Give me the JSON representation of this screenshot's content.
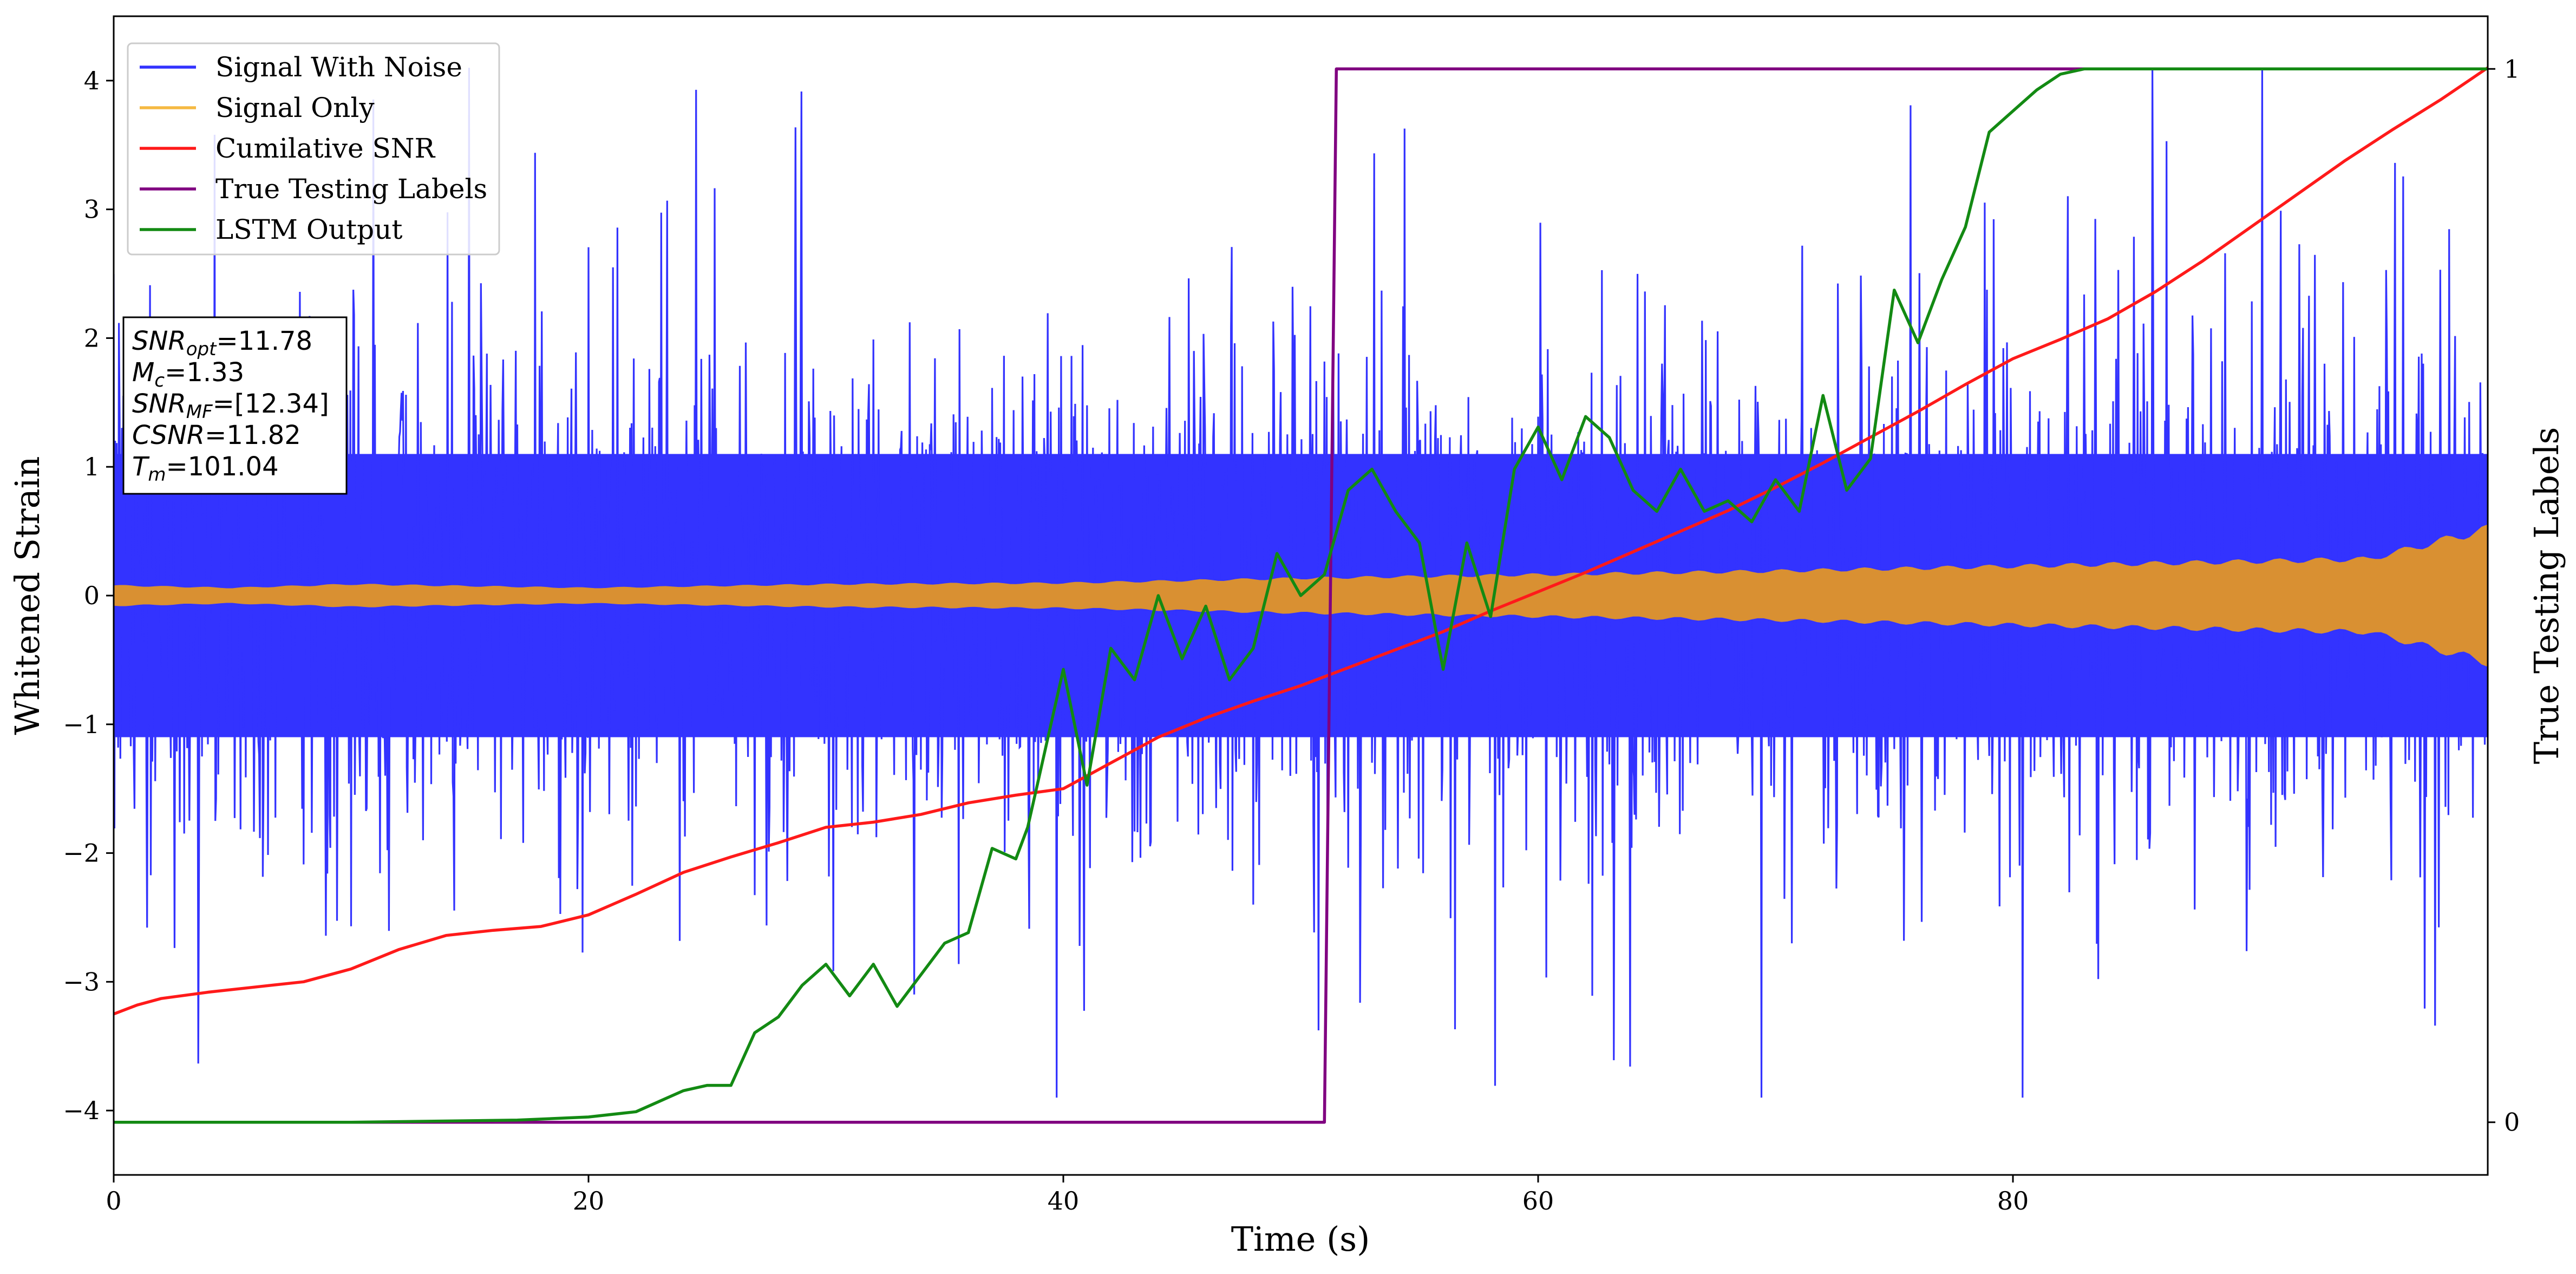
{
  "chart_data": {
    "type": "line",
    "title": "",
    "xlabel": "Time (s)",
    "ylabel": "Whitened Strain",
    "y2label": "True Testing Labels",
    "xlim": [
      0,
      100
    ],
    "ylim": [
      -4.5,
      4.5
    ],
    "y2lim": [
      -0.05,
      1.05
    ],
    "xticks": [
      0,
      20,
      40,
      60,
      80
    ],
    "xtick_labels": [
      "0",
      "20",
      "40",
      "60",
      "80"
    ],
    "yticks": [
      -4,
      -3,
      -2,
      -1,
      0,
      1,
      2,
      3,
      4
    ],
    "ytick_labels": [
      "−4",
      "−3",
      "−2",
      "−1",
      "0",
      "1",
      "2",
      "3",
      "4"
    ],
    "y2ticks": [
      0,
      1
    ],
    "y2tick_labels": [
      "0",
      "1"
    ],
    "grid": false,
    "legend_position": "top-left",
    "legend": [
      {
        "label": "Signal With Noise",
        "color": "#3333ff"
      },
      {
        "label": "Signal Only",
        "color": "#f5b942"
      },
      {
        "label": "Cumilative SNR",
        "color": "#ff1a1a"
      },
      {
        "label": "True Testing Labels",
        "color": "#800080"
      },
      {
        "label": "LSTM Output",
        "color": "#138a13"
      }
    ],
    "annotation": [
      {
        "base": "SNR",
        "sub": "opt",
        "value": "=11.78"
      },
      {
        "base": "M",
        "sub": "c",
        "value": "=1.33"
      },
      {
        "base": "SNR",
        "sub": "MF",
        "value": "=[12.34]"
      },
      {
        "base": "CSNR",
        "sub": "",
        "value": "=11.82"
      },
      {
        "base": "T",
        "sub": "m",
        "value": "=101.04"
      }
    ],
    "series": [
      {
        "name": "Signal With Noise",
        "axis": "left",
        "style": "dense-noise",
        "description_range": [
          -3.9,
          4.1
        ],
        "band_range": [
          -1.1,
          1.1
        ],
        "color": "#3333ff"
      },
      {
        "name": "Signal Only",
        "axis": "left",
        "style": "envelope",
        "color": "#d99032",
        "x": [
          0,
          5,
          10,
          20,
          30,
          40,
          50,
          60,
          70,
          80,
          90,
          95,
          100
        ],
        "amplitude": [
          0.08,
          0.06,
          0.09,
          0.06,
          0.09,
          0.1,
          0.14,
          0.17,
          0.2,
          0.24,
          0.28,
          0.3,
          0.55
        ]
      },
      {
        "name": "Cumilative SNR",
        "axis": "left",
        "color": "#ff1a1a",
        "x": [
          0,
          1,
          2,
          4,
          6,
          8,
          10,
          12,
          14,
          16,
          18,
          20,
          22,
          24,
          26,
          28,
          30,
          32,
          34,
          36,
          38,
          40,
          42,
          44,
          46,
          48,
          50,
          52,
          54,
          56,
          58,
          60,
          62,
          64,
          66,
          68,
          70,
          72,
          74,
          76,
          78,
          80,
          82,
          84,
          86,
          88,
          90,
          92,
          94,
          96,
          98,
          100
        ],
        "y": [
          -3.25,
          -3.18,
          -3.13,
          -3.08,
          -3.04,
          -3.0,
          -2.9,
          -2.75,
          -2.64,
          -2.6,
          -2.57,
          -2.48,
          -2.32,
          -2.15,
          -2.03,
          -1.92,
          -1.8,
          -1.76,
          -1.7,
          -1.61,
          -1.55,
          -1.5,
          -1.3,
          -1.1,
          -0.95,
          -0.82,
          -0.7,
          -0.56,
          -0.42,
          -0.28,
          -0.12,
          0.03,
          0.18,
          0.34,
          0.5,
          0.66,
          0.84,
          1.03,
          1.23,
          1.43,
          1.64,
          1.84,
          1.99,
          2.15,
          2.36,
          2.6,
          2.86,
          3.12,
          3.38,
          3.62,
          3.85,
          4.1
        ]
      },
      {
        "name": "True Testing Labels",
        "axis": "right",
        "color": "#800080",
        "x": [
          0,
          51.0,
          51.5,
          100
        ],
        "y": [
          0,
          0,
          1,
          1
        ]
      },
      {
        "name": "LSTM Output",
        "axis": "right",
        "color": "#138a13",
        "x": [
          0,
          10,
          17,
          20,
          22,
          23,
          24,
          25,
          26,
          27,
          28,
          29,
          30,
          31,
          32,
          33,
          34,
          35,
          36,
          37,
          38,
          38.5,
          39,
          40,
          41,
          42,
          43,
          44,
          45,
          46,
          47,
          48,
          49,
          50,
          51,
          52,
          53,
          54,
          55,
          56,
          57,
          58,
          59,
          60,
          61,
          62,
          63,
          64,
          65,
          66,
          67,
          68,
          69,
          70,
          71,
          72,
          73,
          74,
          75,
          76,
          77,
          78,
          79,
          80,
          81,
          82,
          83,
          85,
          88,
          100
        ],
        "y": [
          0,
          0,
          0.002,
          0.005,
          0.01,
          0.02,
          0.03,
          0.035,
          0.035,
          0.085,
          0.1,
          0.13,
          0.15,
          0.12,
          0.15,
          0.11,
          0.14,
          0.17,
          0.18,
          0.26,
          0.25,
          0.28,
          0.33,
          0.43,
          0.32,
          0.45,
          0.42,
          0.5,
          0.44,
          0.49,
          0.42,
          0.45,
          0.54,
          0.5,
          0.52,
          0.6,
          0.62,
          0.58,
          0.55,
          0.43,
          0.55,
          0.48,
          0.62,
          0.66,
          0.61,
          0.67,
          0.65,
          0.6,
          0.58,
          0.62,
          0.58,
          0.59,
          0.57,
          0.61,
          0.58,
          0.69,
          0.6,
          0.63,
          0.79,
          0.74,
          0.8,
          0.85,
          0.94,
          0.96,
          0.98,
          0.995,
          1.0,
          1.0,
          1.0,
          1.0
        ]
      }
    ]
  }
}
